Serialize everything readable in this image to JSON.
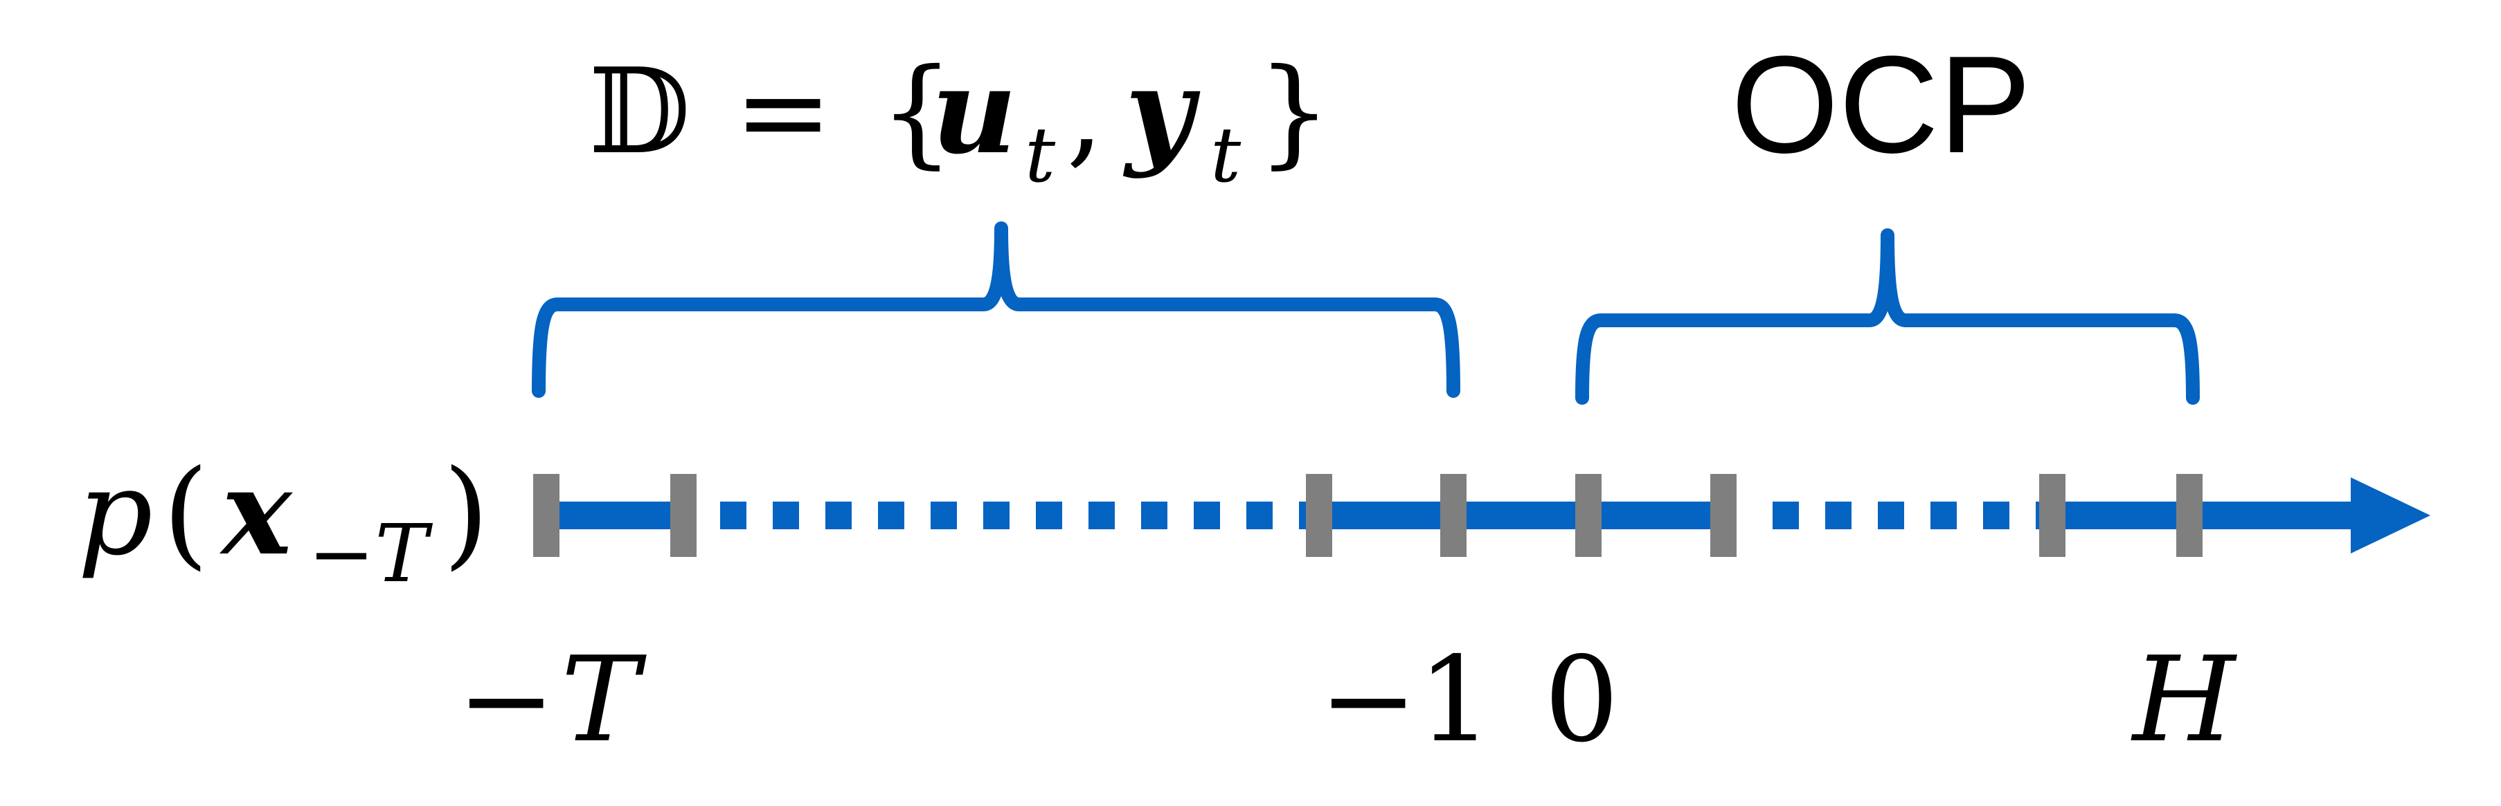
{
  "colors": {
    "timeline_blue": "#0563c1",
    "tick_gray": "#7f7f7f",
    "text_black": "#000000",
    "background": "#ffffff"
  },
  "dataset_label": {
    "symbol": "𝔻",
    "equals": "=",
    "open_brace": "{",
    "u": "u",
    "u_sub": "t",
    "comma": ",",
    "y": "y",
    "y_sub": "t",
    "close_brace": "}"
  },
  "ocp_label": "OCP",
  "initial_distribution": {
    "p": "p",
    "open_paren": "(",
    "x": "x",
    "x_sub": "−T",
    "close_paren": ")"
  },
  "tick_labels": {
    "minus_T": {
      "minus": "−",
      "var": "T"
    },
    "minus_one": "−1",
    "zero": "0",
    "H": "H"
  },
  "icons": {
    "arrow": "arrow-right-icon",
    "brace_dataset": "curly-brace-icon",
    "brace_ocp": "curly-brace-icon"
  }
}
